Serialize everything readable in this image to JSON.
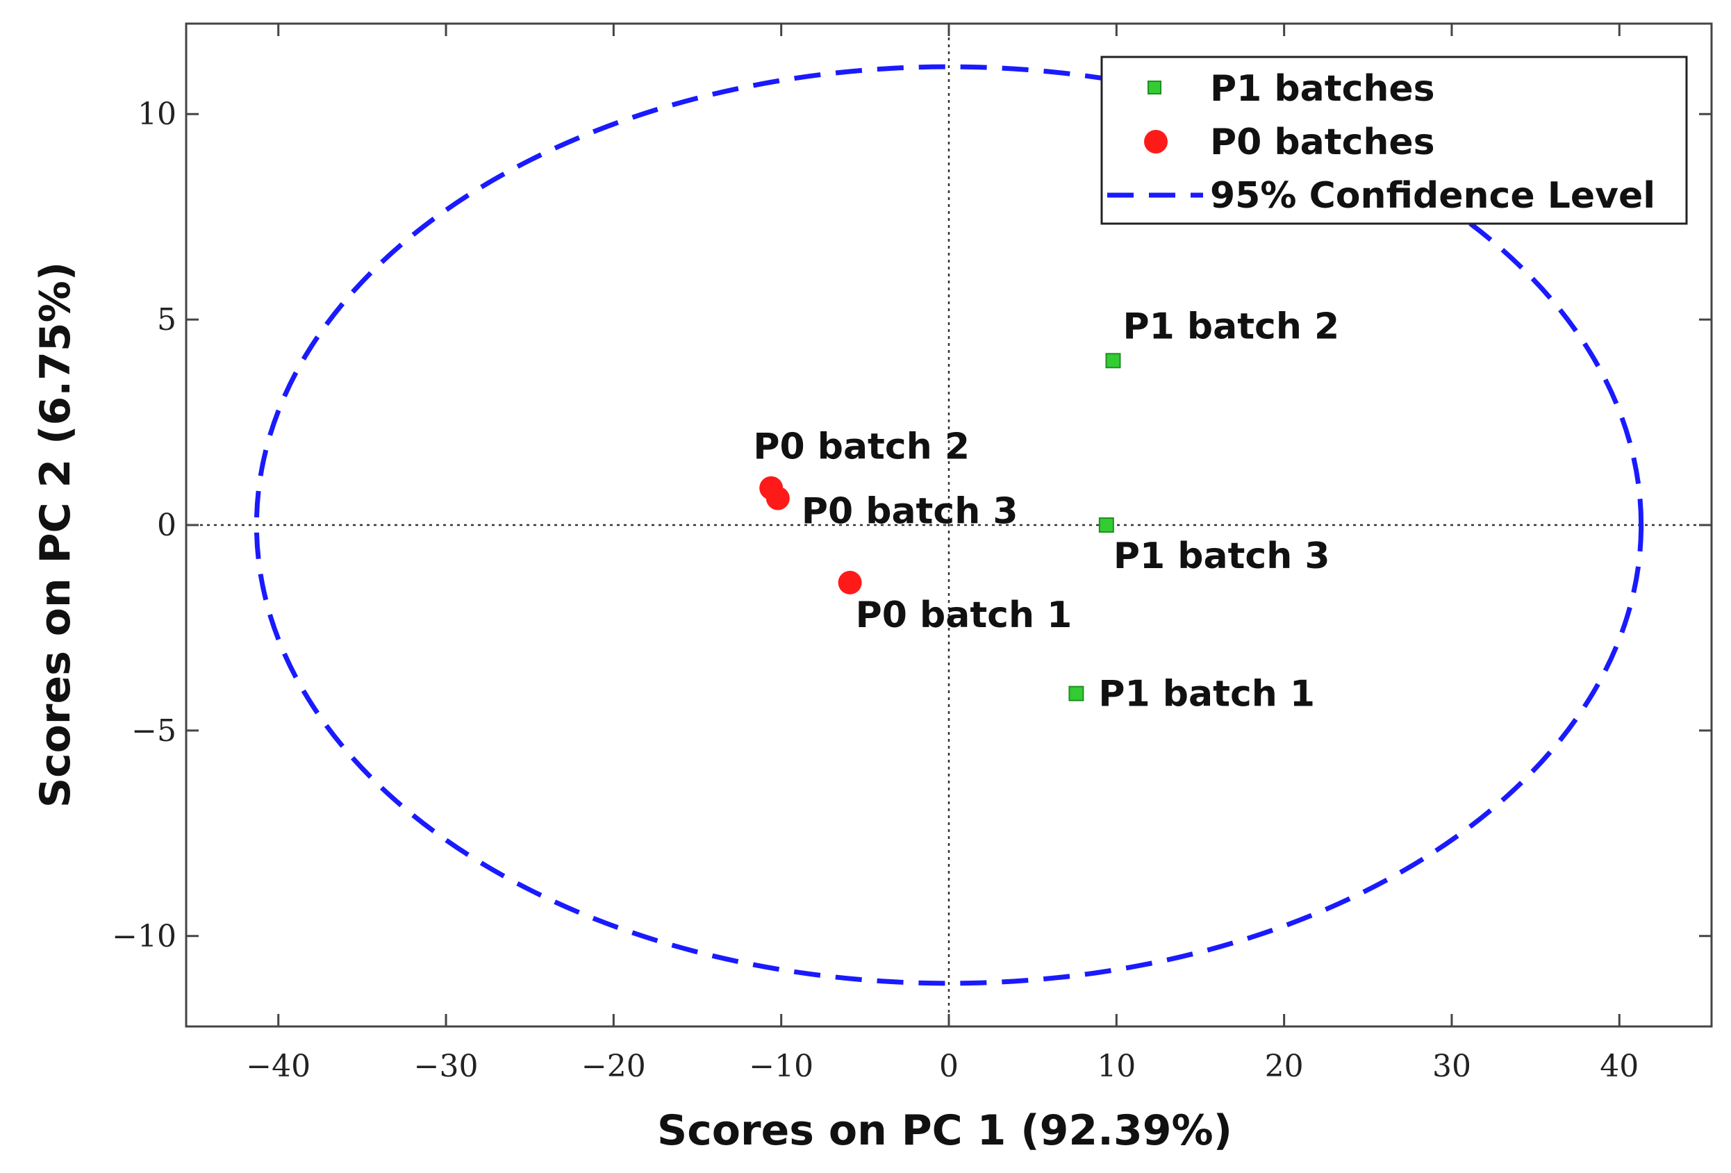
{
  "chart_data": {
    "type": "scatter",
    "xlabel": "Scores on PC 1 (92.39%)",
    "ylabel": "Scores on PC 2 (6.75%)",
    "xlim": [
      -45.5,
      45.5
    ],
    "ylim": [
      -12.2,
      12.2
    ],
    "xticks": [
      -40,
      -30,
      -20,
      -10,
      0,
      10,
      20,
      30,
      40
    ],
    "yticks": [
      -10,
      -5,
      0,
      5,
      10
    ],
    "xtick_labels": [
      "−40",
      "−30",
      "−20",
      "−10",
      "0",
      "10",
      "20",
      "30",
      "40"
    ],
    "ytick_labels": [
      "−10",
      "−5",
      "0",
      "5",
      "10"
    ],
    "reference_lines": {
      "x": 0,
      "y": 0,
      "style": "dotted"
    },
    "series": [
      {
        "name": "P1 batches",
        "marker": "square",
        "color": "#33cc33",
        "points": [
          {
            "label": "P1 batch 1",
            "x": 7.6,
            "y": -4.1
          },
          {
            "label": "P1 batch 2",
            "x": 9.8,
            "y": 4.0
          },
          {
            "label": "P1 batch 3",
            "x": 9.4,
            "y": 0.0
          }
        ]
      },
      {
        "name": "P0 batches",
        "marker": "circle",
        "color": "#ff1a1a",
        "points": [
          {
            "label": "P0 batch 1",
            "x": -5.9,
            "y": -1.4
          },
          {
            "label": "P0 batch 2",
            "x": -10.6,
            "y": 0.9
          },
          {
            "label": "P0 batch 3",
            "x": -10.2,
            "y": 0.65
          }
        ]
      }
    ],
    "confidence_ellipse": {
      "name": "95% Confidence Level",
      "center_x": 0,
      "center_y": 0,
      "semi_axis_x": 41.3,
      "semi_axis_y": 11.15,
      "style": "dashed",
      "color": "#1a1aff"
    },
    "legend": {
      "position": "top-right",
      "entries": [
        "P1 batches",
        "P0 batches",
        "95% Confidence Level"
      ]
    }
  }
}
